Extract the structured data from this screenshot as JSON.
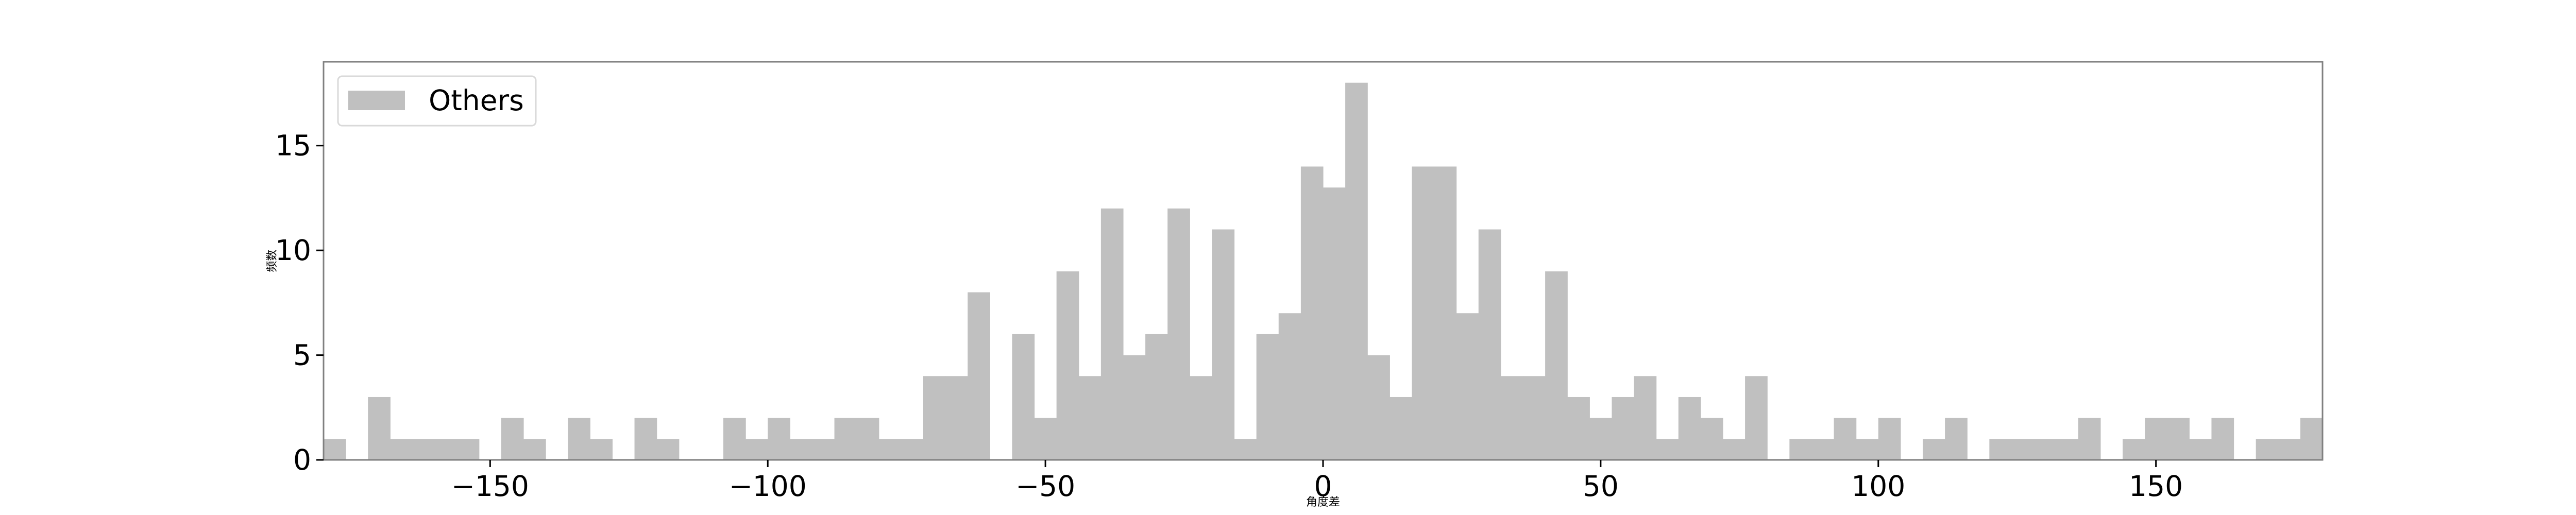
{
  "chart_data": {
    "type": "bar",
    "title": "",
    "xlabel": "角度差",
    "ylabel": "频数",
    "xlim": [
      -180,
      180
    ],
    "ylim": [
      0,
      19
    ],
    "bin_width": 4,
    "x_ticks": [
      -150,
      -100,
      -50,
      0,
      50,
      100,
      150
    ],
    "x_tick_labels": [
      "−150",
      "−100",
      "−50",
      "0",
      "50",
      "100",
      "150"
    ],
    "y_ticks": [
      0,
      5,
      10,
      15
    ],
    "y_tick_labels": [
      "0",
      "5",
      "10",
      "15"
    ],
    "grid": false,
    "legend_position": "top-left",
    "series": [
      {
        "name": "Others",
        "color": "#c0c0c0",
        "x": [
          -178,
          -174,
          -170,
          -166,
          -162,
          -158,
          -154,
          -150,
          -146,
          -142,
          -138,
          -134,
          -130,
          -126,
          -122,
          -118,
          -114,
          -110,
          -106,
          -102,
          -98,
          -94,
          -90,
          -86,
          -82,
          -78,
          -74,
          -70,
          -66,
          -62,
          -58,
          -54,
          -50,
          -46,
          -42,
          -38,
          -34,
          -30,
          -26,
          -22,
          -18,
          -14,
          -10,
          -6,
          -2,
          2,
          6,
          10,
          14,
          18,
          22,
          26,
          30,
          34,
          38,
          42,
          46,
          50,
          54,
          58,
          62,
          66,
          70,
          74,
          78,
          82,
          86,
          90,
          94,
          98,
          102,
          106,
          110,
          114,
          118,
          122,
          126,
          130,
          134,
          138,
          142,
          146,
          150,
          154,
          158,
          162,
          166,
          170,
          174,
          178
        ],
        "values": [
          1,
          0,
          3,
          1,
          1,
          1,
          1,
          0,
          2,
          1,
          0,
          2,
          1,
          0,
          2,
          1,
          0,
          0,
          2,
          1,
          2,
          1,
          1,
          2,
          2,
          1,
          1,
          4,
          4,
          8,
          0,
          6,
          2,
          9,
          4,
          12,
          5,
          6,
          12,
          4,
          11,
          1,
          6,
          7,
          14,
          13,
          18,
          5,
          3,
          14,
          14,
          7,
          11,
          4,
          4,
          9,
          3,
          2,
          3,
          4,
          1,
          3,
          2,
          1,
          4,
          0,
          1,
          1,
          2,
          1,
          2,
          0,
          1,
          2,
          0,
          1,
          1,
          1,
          1,
          2,
          0,
          1,
          2,
          2,
          1,
          2,
          0,
          1,
          1,
          2
        ]
      }
    ]
  }
}
